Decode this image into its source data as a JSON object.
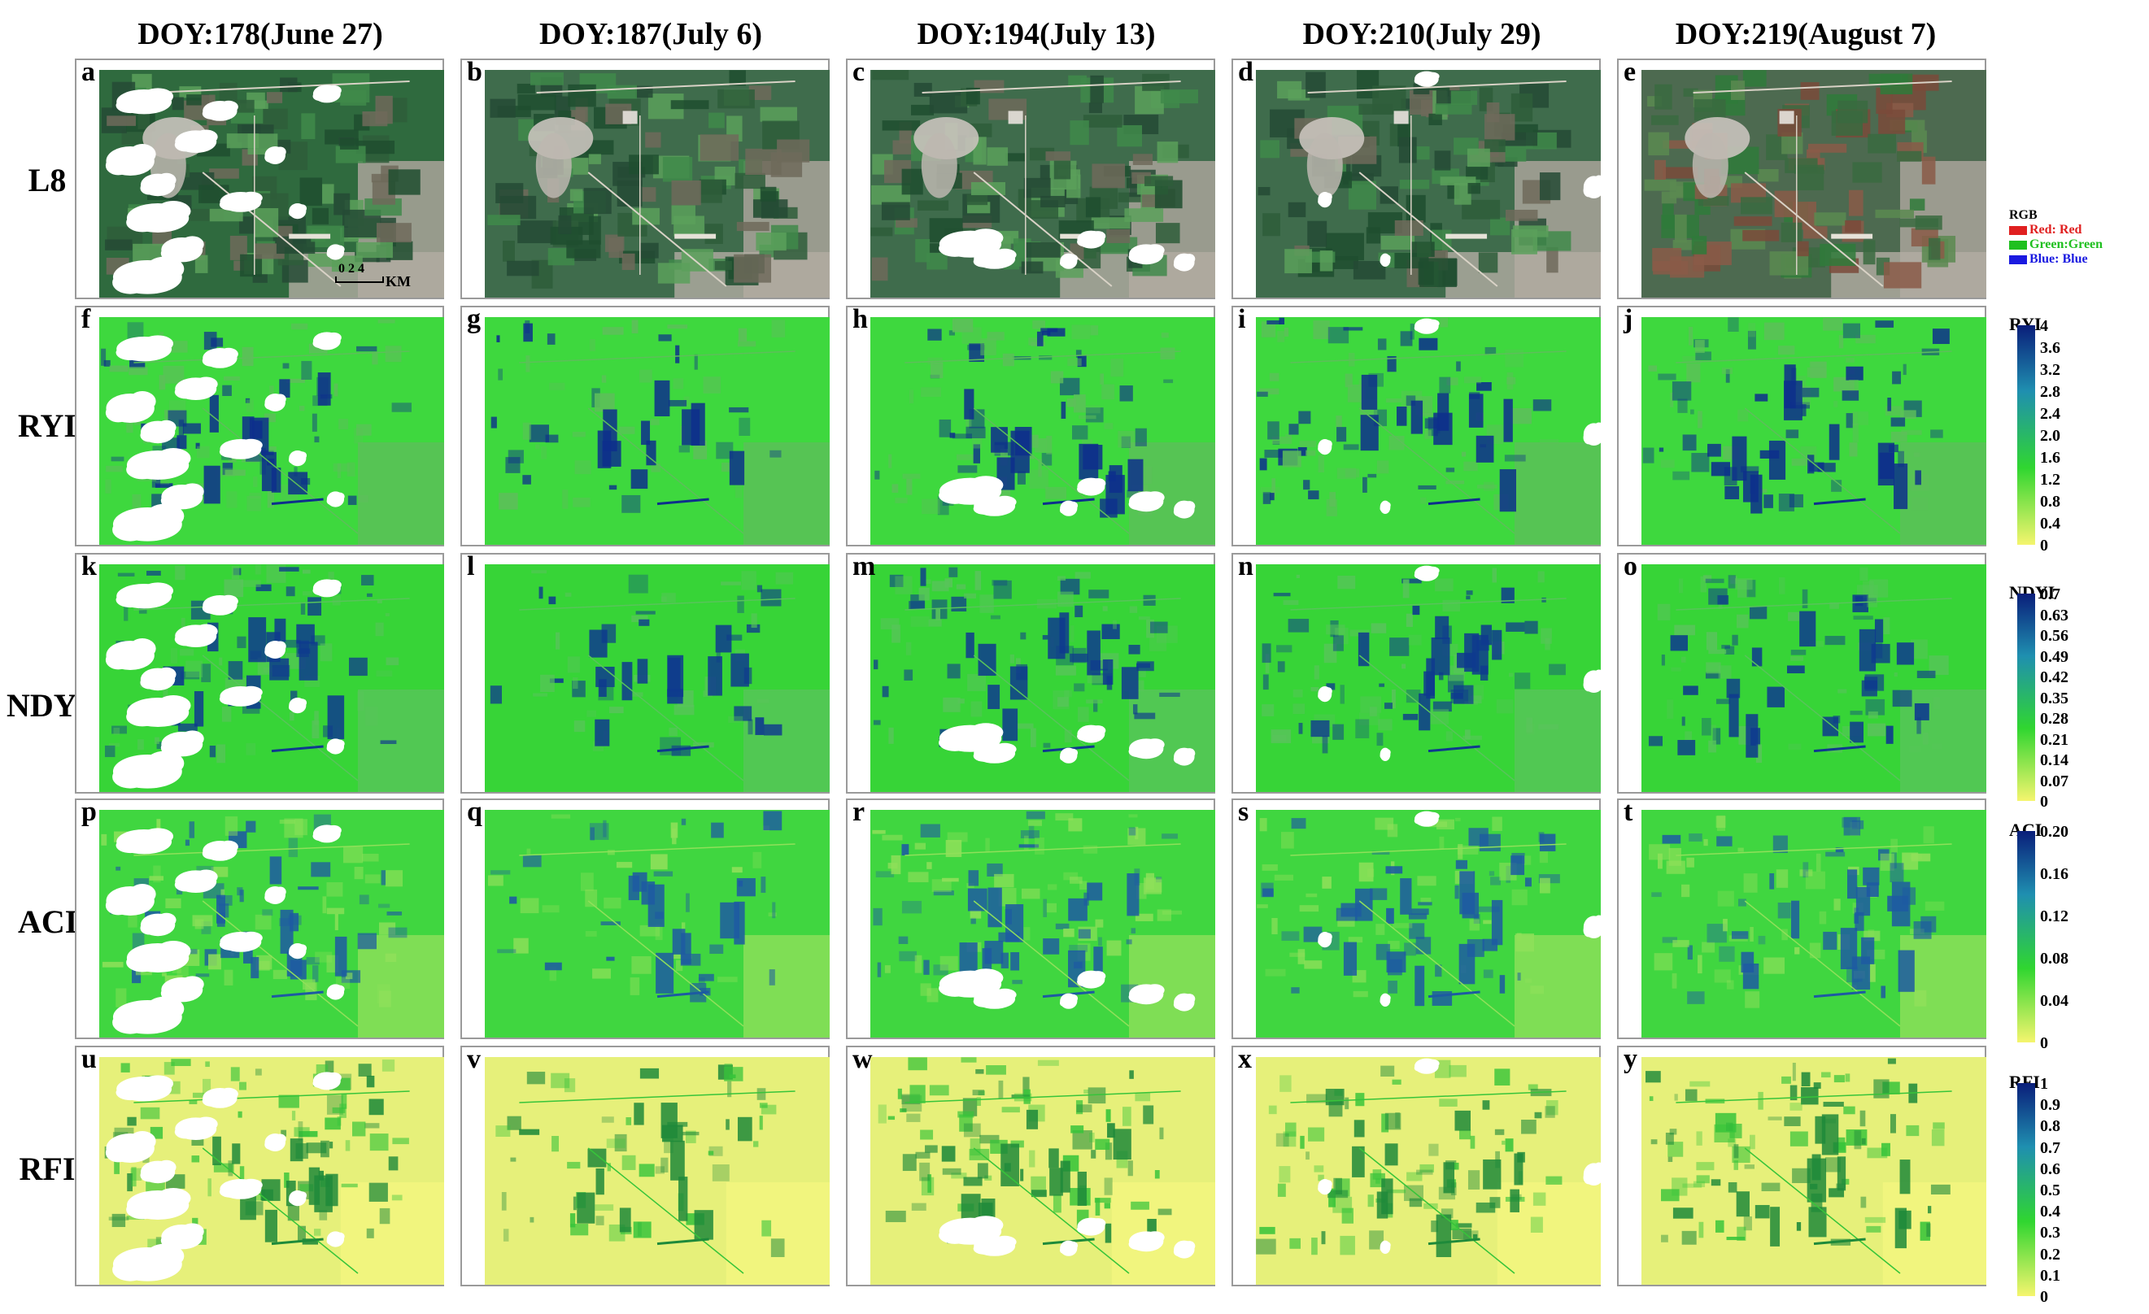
{
  "column_headers": [
    "DOY:178(June 27)",
    "DOY:187(July 6)",
    "DOY:194(July 13)",
    "DOY:210(July 29)",
    "DOY:219(August 7)"
  ],
  "row_labels": [
    "L8",
    "RYI",
    "NDYI",
    "ACI",
    "RFI"
  ],
  "panel_letters": [
    [
      "a",
      "b",
      "c",
      "d",
      "e"
    ],
    [
      "f",
      "g",
      "h",
      "i",
      "j"
    ],
    [
      "k",
      "l",
      "m",
      "n",
      "o"
    ],
    [
      "p",
      "q",
      "r",
      "s",
      "t"
    ],
    [
      "u",
      "v",
      "w",
      "x",
      "y"
    ]
  ],
  "scale_bar": {
    "ticks": "0  2  4",
    "unit": "KM"
  },
  "rgb_legend": {
    "title": "RGB",
    "entries": [
      {
        "label": "Red: Red",
        "color": "#e02020"
      },
      {
        "label": "Green:Green",
        "color": "#20c020"
      },
      {
        "label": "Blue: Blue",
        "color": "#1a1ae0"
      }
    ]
  },
  "colorbars": [
    {
      "title": "RYI",
      "ticks": [
        "4",
        "3.6",
        "3.2",
        "2.8",
        "2.4",
        "2.0",
        "1.6",
        "1.2",
        "0.8",
        "0.4",
        "0"
      ]
    },
    {
      "title": "NDYI",
      "ticks": [
        "0.7",
        "0.63",
        "0.56",
        "0.49",
        "0.42",
        "0.35",
        "0.28",
        "0.21",
        "0.14",
        "0.07",
        "0"
      ]
    },
    {
      "title": "ACI",
      "ticks": [
        "0.20",
        "0.16",
        "0.12",
        "0.08",
        "0.04",
        "0"
      ]
    },
    {
      "title": "RFI",
      "ticks": [
        "1",
        "0.9",
        "0.8",
        "0.7",
        "0.6",
        "0.5",
        "0.4",
        "0.3",
        "0.2",
        "0.1",
        "0"
      ]
    }
  ],
  "colors": {
    "colorbar_low": "#f5f56e",
    "colorbar_mid": "#30d630",
    "colorbar_high": "#0a1e7a",
    "cloud": "#ffffff"
  }
}
